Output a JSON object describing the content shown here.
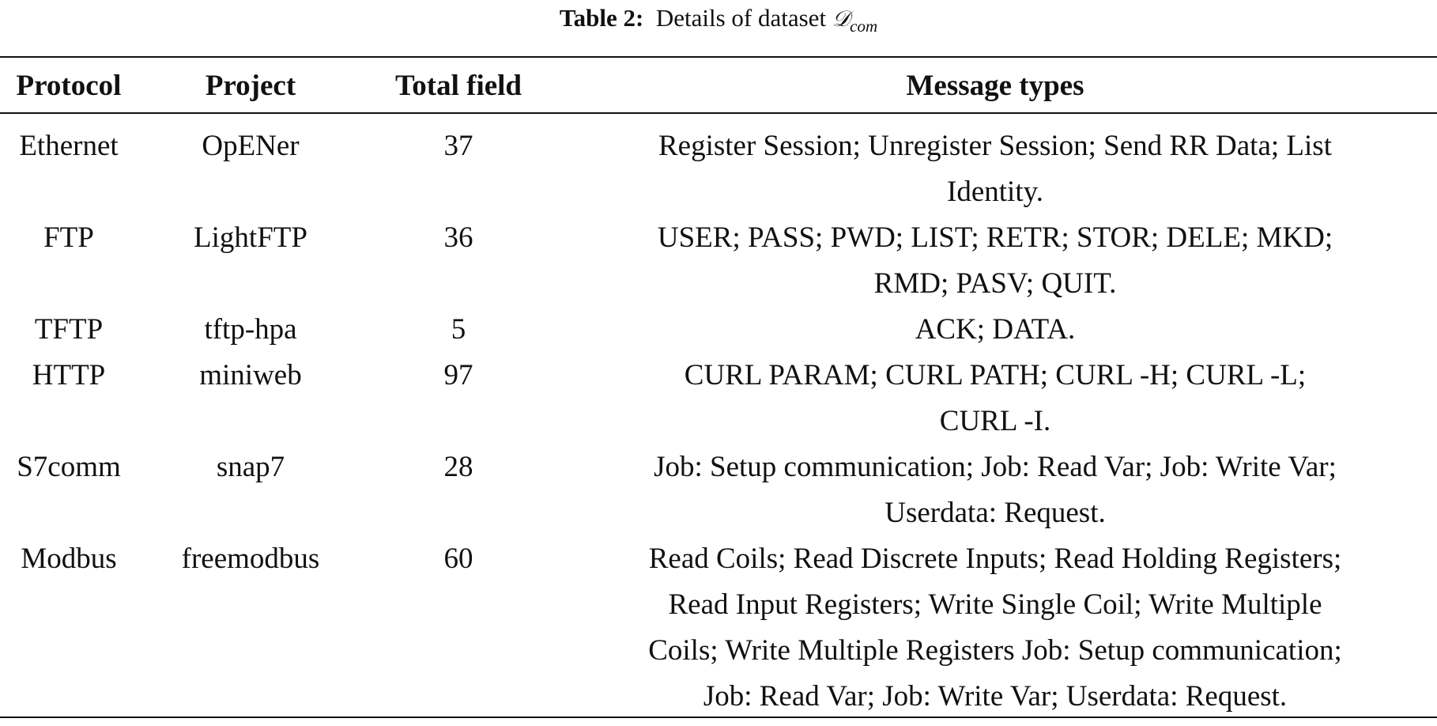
{
  "caption": {
    "label": "Table 2:",
    "text": "Details of dataset",
    "symbol": "𝒟",
    "subscript": "com"
  },
  "headers": [
    "Protocol",
    "Project",
    "Total field",
    "Message types"
  ],
  "rows": [
    {
      "protocol": "Ethernet",
      "project": "OpENer",
      "total": "37",
      "messages": [
        "Register Session; Unregister Session; Send RR Data; List",
        "Identity."
      ]
    },
    {
      "protocol": "FTP",
      "project": "LightFTP",
      "total": "36",
      "messages": [
        "USER; PASS; PWD; LIST; RETR; STOR; DELE; MKD;",
        "RMD; PASV; QUIT."
      ]
    },
    {
      "protocol": "TFTP",
      "project": "tftp-hpa",
      "total": "5",
      "messages": [
        "ACK; DATA."
      ]
    },
    {
      "protocol": "HTTP",
      "project": "miniweb",
      "total": "97",
      "messages": [
        "CURL PARAM; CURL PATH; CURL -H; CURL -L;",
        "CURL -I."
      ]
    },
    {
      "protocol": "S7comm",
      "project": "snap7",
      "total": "28",
      "messages": [
        "Job: Setup communication; Job: Read Var; Job: Write Var;",
        "Userdata: Request."
      ]
    },
    {
      "protocol": "Modbus",
      "project": "freemodbus",
      "total": "60",
      "messages": [
        "Read Coils; Read Discrete Inputs; Read Holding Registers;",
        "Read Input Registers; Write Single Coil; Write Multiple",
        "Coils; Write Multiple Registers Job: Setup communication;",
        "Job: Read Var; Job: Write Var; Userdata: Request."
      ]
    }
  ]
}
